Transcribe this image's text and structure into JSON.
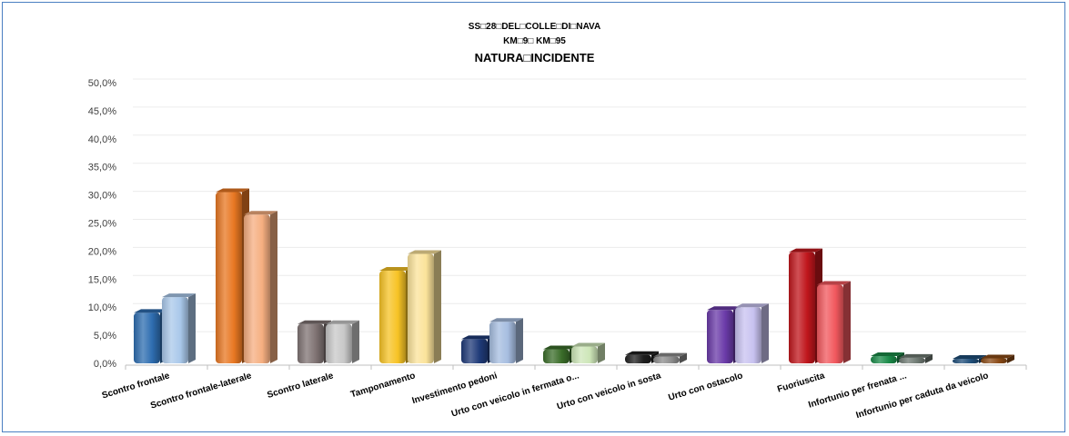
{
  "chart_data": {
    "type": "bar",
    "title_lines": [
      "SS□28□DEL□COLLE□DI□NAVA",
      "KM□9□ KM□95",
      "NATURA□INCIDENTE"
    ],
    "xlabel": "",
    "ylabel": "",
    "ylim": [
      0,
      50
    ],
    "yticks": [
      "0,0%",
      "5,0%",
      "10,0%",
      "15,0%",
      "20,0%",
      "25,0%",
      "30,0%",
      "35,0%",
      "40,0%",
      "45,0%",
      "50,0%"
    ],
    "grid": true,
    "categories": [
      "Scontro frontale",
      "Scontro frontale-laterale",
      "Scontro laterale",
      "Tamponamento",
      "Investimento  pedoni",
      "Urto con veicolo  in fermata o...",
      "Urto con veicolo  in sosta",
      "Urto con ostacolo",
      "Fuoriuscita",
      "Infortunio  per frenata ...",
      "Infortunio  per caduta da veicolo"
    ],
    "series": [
      {
        "values": [
          9.0,
          30.5,
          7.0,
          16.5,
          4.3,
          2.5,
          1.5,
          9.5,
          19.8,
          1.3,
          0.8
        ]
      },
      {
        "values": [
          11.8,
          26.5,
          7.0,
          19.5,
          7.4,
          3.0,
          1.2,
          10.0,
          14.0,
          1.0,
          0.9
        ]
      }
    ],
    "bar_colors": [
      [
        "#2e6db0",
        "#a9c8ea"
      ],
      [
        "#e87722",
        "#f5ae80"
      ],
      [
        "#7f7373",
        "#c8c8c8"
      ],
      [
        "#f7c325",
        "#fbe39a"
      ],
      [
        "#1f3a78",
        "#a6bde0"
      ],
      [
        "#3b6d2a",
        "#cde6b8"
      ],
      [
        "#1e1e1e",
        "#8c8c8c"
      ],
      [
        "#6a3aa8",
        "#c8c2f0"
      ],
      [
        "#c0161c",
        "#f2585e"
      ],
      [
        "#1a8a48",
        "#6f7a73"
      ],
      [
        "#1f4e79",
        "#8a4a16"
      ]
    ]
  }
}
